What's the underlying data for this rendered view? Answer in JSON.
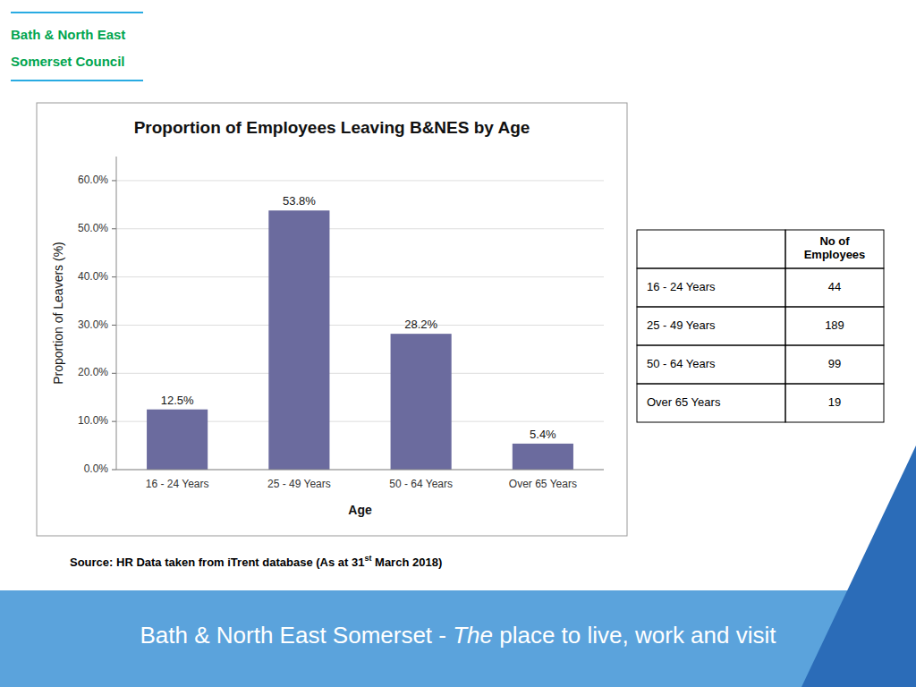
{
  "chart_data": {
    "type": "bar",
    "title": "Proportion of Employees Leaving B&NES by Age",
    "xlabel": "Age",
    "ylabel": "Proportion of Leavers (%)",
    "categories": [
      "16 - 24 Years",
      "25 - 49 Years",
      "50 - 64 Years",
      "Over 65 Years"
    ],
    "values": [
      12.5,
      53.8,
      28.2,
      5.4
    ],
    "value_labels": [
      "12.5%",
      "53.8%",
      "28.2%",
      "5.4%"
    ],
    "data_labels": true,
    "color": "#6B6B9E",
    "ylim": [
      0,
      65
    ],
    "yticks": [
      {
        "value": 0,
        "label": "0.0%"
      },
      {
        "value": 10,
        "label": "10.0%"
      },
      {
        "value": 20,
        "label": "20.0%"
      },
      {
        "value": 30,
        "label": "30.0%"
      },
      {
        "value": 40,
        "label": "40.0%"
      },
      {
        "value": 50,
        "label": "50.0%"
      },
      {
        "value": 60,
        "label": "60.0%"
      }
    ],
    "grid": true
  },
  "logo": [
    "Bath & North East",
    "Somerset Council"
  ],
  "table": {
    "columns": [
      "No of\nEmployees"
    ],
    "rows": [
      [
        "16 - 24 Years",
        44
      ],
      [
        "25 - 49 Years",
        189
      ],
      [
        "50 - 64 Years",
        99
      ],
      [
        "Over 65 Years",
        19
      ]
    ]
  },
  "source": [
    "Source: HR Data taken from iTrent database (As at 31",
    "st",
    " March 2018)"
  ],
  "footer": [
    "Bath & North East Somerset - ",
    "The",
    " place to live, work and visit"
  ]
}
